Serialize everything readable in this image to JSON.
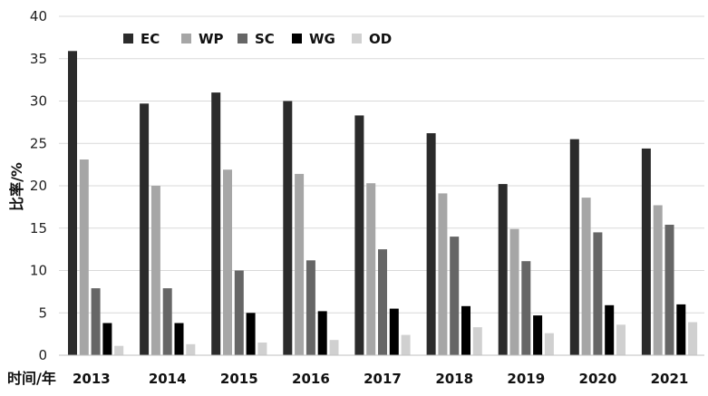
{
  "chart_data": {
    "type": "bar",
    "xlabel": "时间/年",
    "ylabel": "比率/%",
    "ylim": [
      0,
      40
    ],
    "yticks": [
      0,
      5,
      10,
      15,
      20,
      25,
      30,
      35,
      40
    ],
    "grid": "horizontal",
    "legend_position": "top",
    "categories": [
      "2013",
      "2014",
      "2015",
      "2016",
      "2017",
      "2018",
      "2019",
      "2020",
      "2021"
    ],
    "series": [
      {
        "name": "EC",
        "color": "#2b2b2b",
        "values": [
          35.9,
          29.7,
          31.0,
          30.0,
          28.3,
          26.2,
          20.2,
          25.5,
          24.4
        ]
      },
      {
        "name": "WP",
        "color": "#a6a6a6",
        "values": [
          23.1,
          20.0,
          21.9,
          21.4,
          20.3,
          19.1,
          14.9,
          18.6,
          17.7
        ]
      },
      {
        "name": "SC",
        "color": "#666666",
        "values": [
          7.9,
          7.9,
          10.0,
          11.2,
          12.5,
          14.0,
          11.1,
          14.5,
          15.4
        ]
      },
      {
        "name": "WG",
        "color": "#000000",
        "values": [
          3.8,
          3.8,
          5.0,
          5.2,
          5.5,
          5.8,
          4.7,
          5.9,
          6.0
        ]
      },
      {
        "name": "OD",
        "color": "#d0d0d0",
        "values": [
          1.1,
          1.3,
          1.5,
          1.8,
          2.4,
          3.3,
          2.6,
          3.6,
          3.9
        ]
      }
    ]
  }
}
